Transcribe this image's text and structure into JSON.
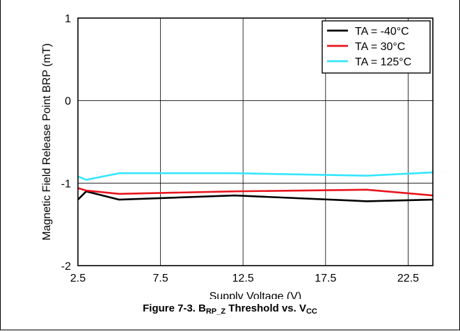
{
  "chart_data": {
    "type": "line",
    "xlabel": "Supply Voltage (V)",
    "ylabel": "Magnetic Field Release Point BRP (mT)",
    "xlim": [
      2.5,
      24
    ],
    "ylim": [
      -2,
      1
    ],
    "xticks": [
      2.5,
      7.5,
      12.5,
      17.5,
      22.5
    ],
    "xtick_labels": [
      "2.5",
      "7.5",
      "12.5",
      "17.5",
      "22.5"
    ],
    "yticks": [
      1,
      0,
      -1,
      -2
    ],
    "ytick_labels": [
      "1",
      "0",
      "-1",
      "-2"
    ],
    "grid": true,
    "legend_position": "top-right",
    "series": [
      {
        "name": "TA = -40°C",
        "color": "#000000",
        "x": [
          2.5,
          3,
          5,
          12,
          20,
          24
        ],
        "y": [
          -1.2,
          -1.1,
          -1.2,
          -1.15,
          -1.22,
          -1.2
        ]
      },
      {
        "name": "TA = 30°C",
        "color": "#e8141c",
        "x": [
          2.5,
          3,
          5,
          12,
          20,
          24
        ],
        "y": [
          -1.06,
          -1.09,
          -1.13,
          -1.1,
          -1.08,
          -1.15
        ]
      },
      {
        "name": "TA = 125°C",
        "color": "#33e6ff",
        "x": [
          2.5,
          3,
          5,
          12,
          20,
          24
        ],
        "y": [
          -0.92,
          -0.96,
          -0.88,
          -0.88,
          -0.91,
          -0.87
        ]
      }
    ],
    "caption": {
      "prefix": "Figure 7-3. B",
      "sub1": "RP_Z",
      "middle": " Threshold vs. V",
      "sub2": "CC"
    }
  }
}
